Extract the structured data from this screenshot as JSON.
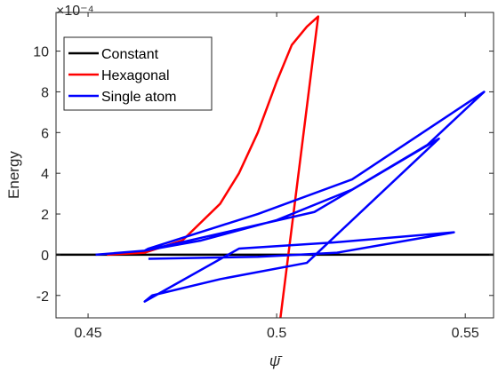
{
  "chart_data": {
    "type": "line",
    "title": "",
    "xlabel": "ψ̄",
    "ylabel": "Energy",
    "exponent_label": "×10⁻⁴",
    "xlim": [
      0.4415,
      0.5575
    ],
    "ylim": [
      -3.1,
      11.9
    ],
    "xticks": [
      0.45,
      0.5,
      0.55
    ],
    "xtick_labels": [
      "0.45",
      "0.5",
      "0.55"
    ],
    "yticks": [
      -2,
      0,
      2,
      4,
      6,
      8,
      10
    ],
    "ytick_labels": [
      "-2",
      "0",
      "2",
      "4",
      "6",
      "8",
      "10"
    ],
    "grid": false,
    "legend_position": "top-left",
    "series": [
      {
        "name": "Constant",
        "color": "#000000",
        "x": [
          0.4415,
          0.5575
        ],
        "y": [
          0,
          0
        ]
      },
      {
        "name": "Hexagonal",
        "color": "#ff0000",
        "x": [
          0.455,
          0.465,
          0.475,
          0.485,
          0.49,
          0.495,
          0.5,
          0.504,
          0.508,
          0.511,
          0.501
        ],
        "y": [
          0.0,
          0.1,
          0.7,
          2.5,
          4.0,
          6.0,
          8.5,
          10.3,
          11.2,
          11.7,
          -3.1
        ]
      },
      {
        "name": "Single atom",
        "color": "#0000ff",
        "x": [
          0.452,
          0.465,
          0.48,
          0.5,
          0.52,
          0.54,
          0.555,
          0.52,
          0.495,
          0.466,
          0.465,
          0.51,
          0.543,
          0.508,
          0.485,
          0.467,
          0.465,
          0.49,
          0.515,
          0.547,
          0.516,
          0.495,
          0.466
        ],
        "y": [
          0.0,
          0.2,
          0.7,
          1.7,
          3.2,
          5.4,
          8.0,
          3.7,
          2.0,
          0.3,
          0.2,
          2.1,
          5.7,
          -0.4,
          -1.2,
          -2.0,
          -2.3,
          0.3,
          0.6,
          1.1,
          0.1,
          -0.1,
          -0.2
        ]
      }
    ]
  }
}
